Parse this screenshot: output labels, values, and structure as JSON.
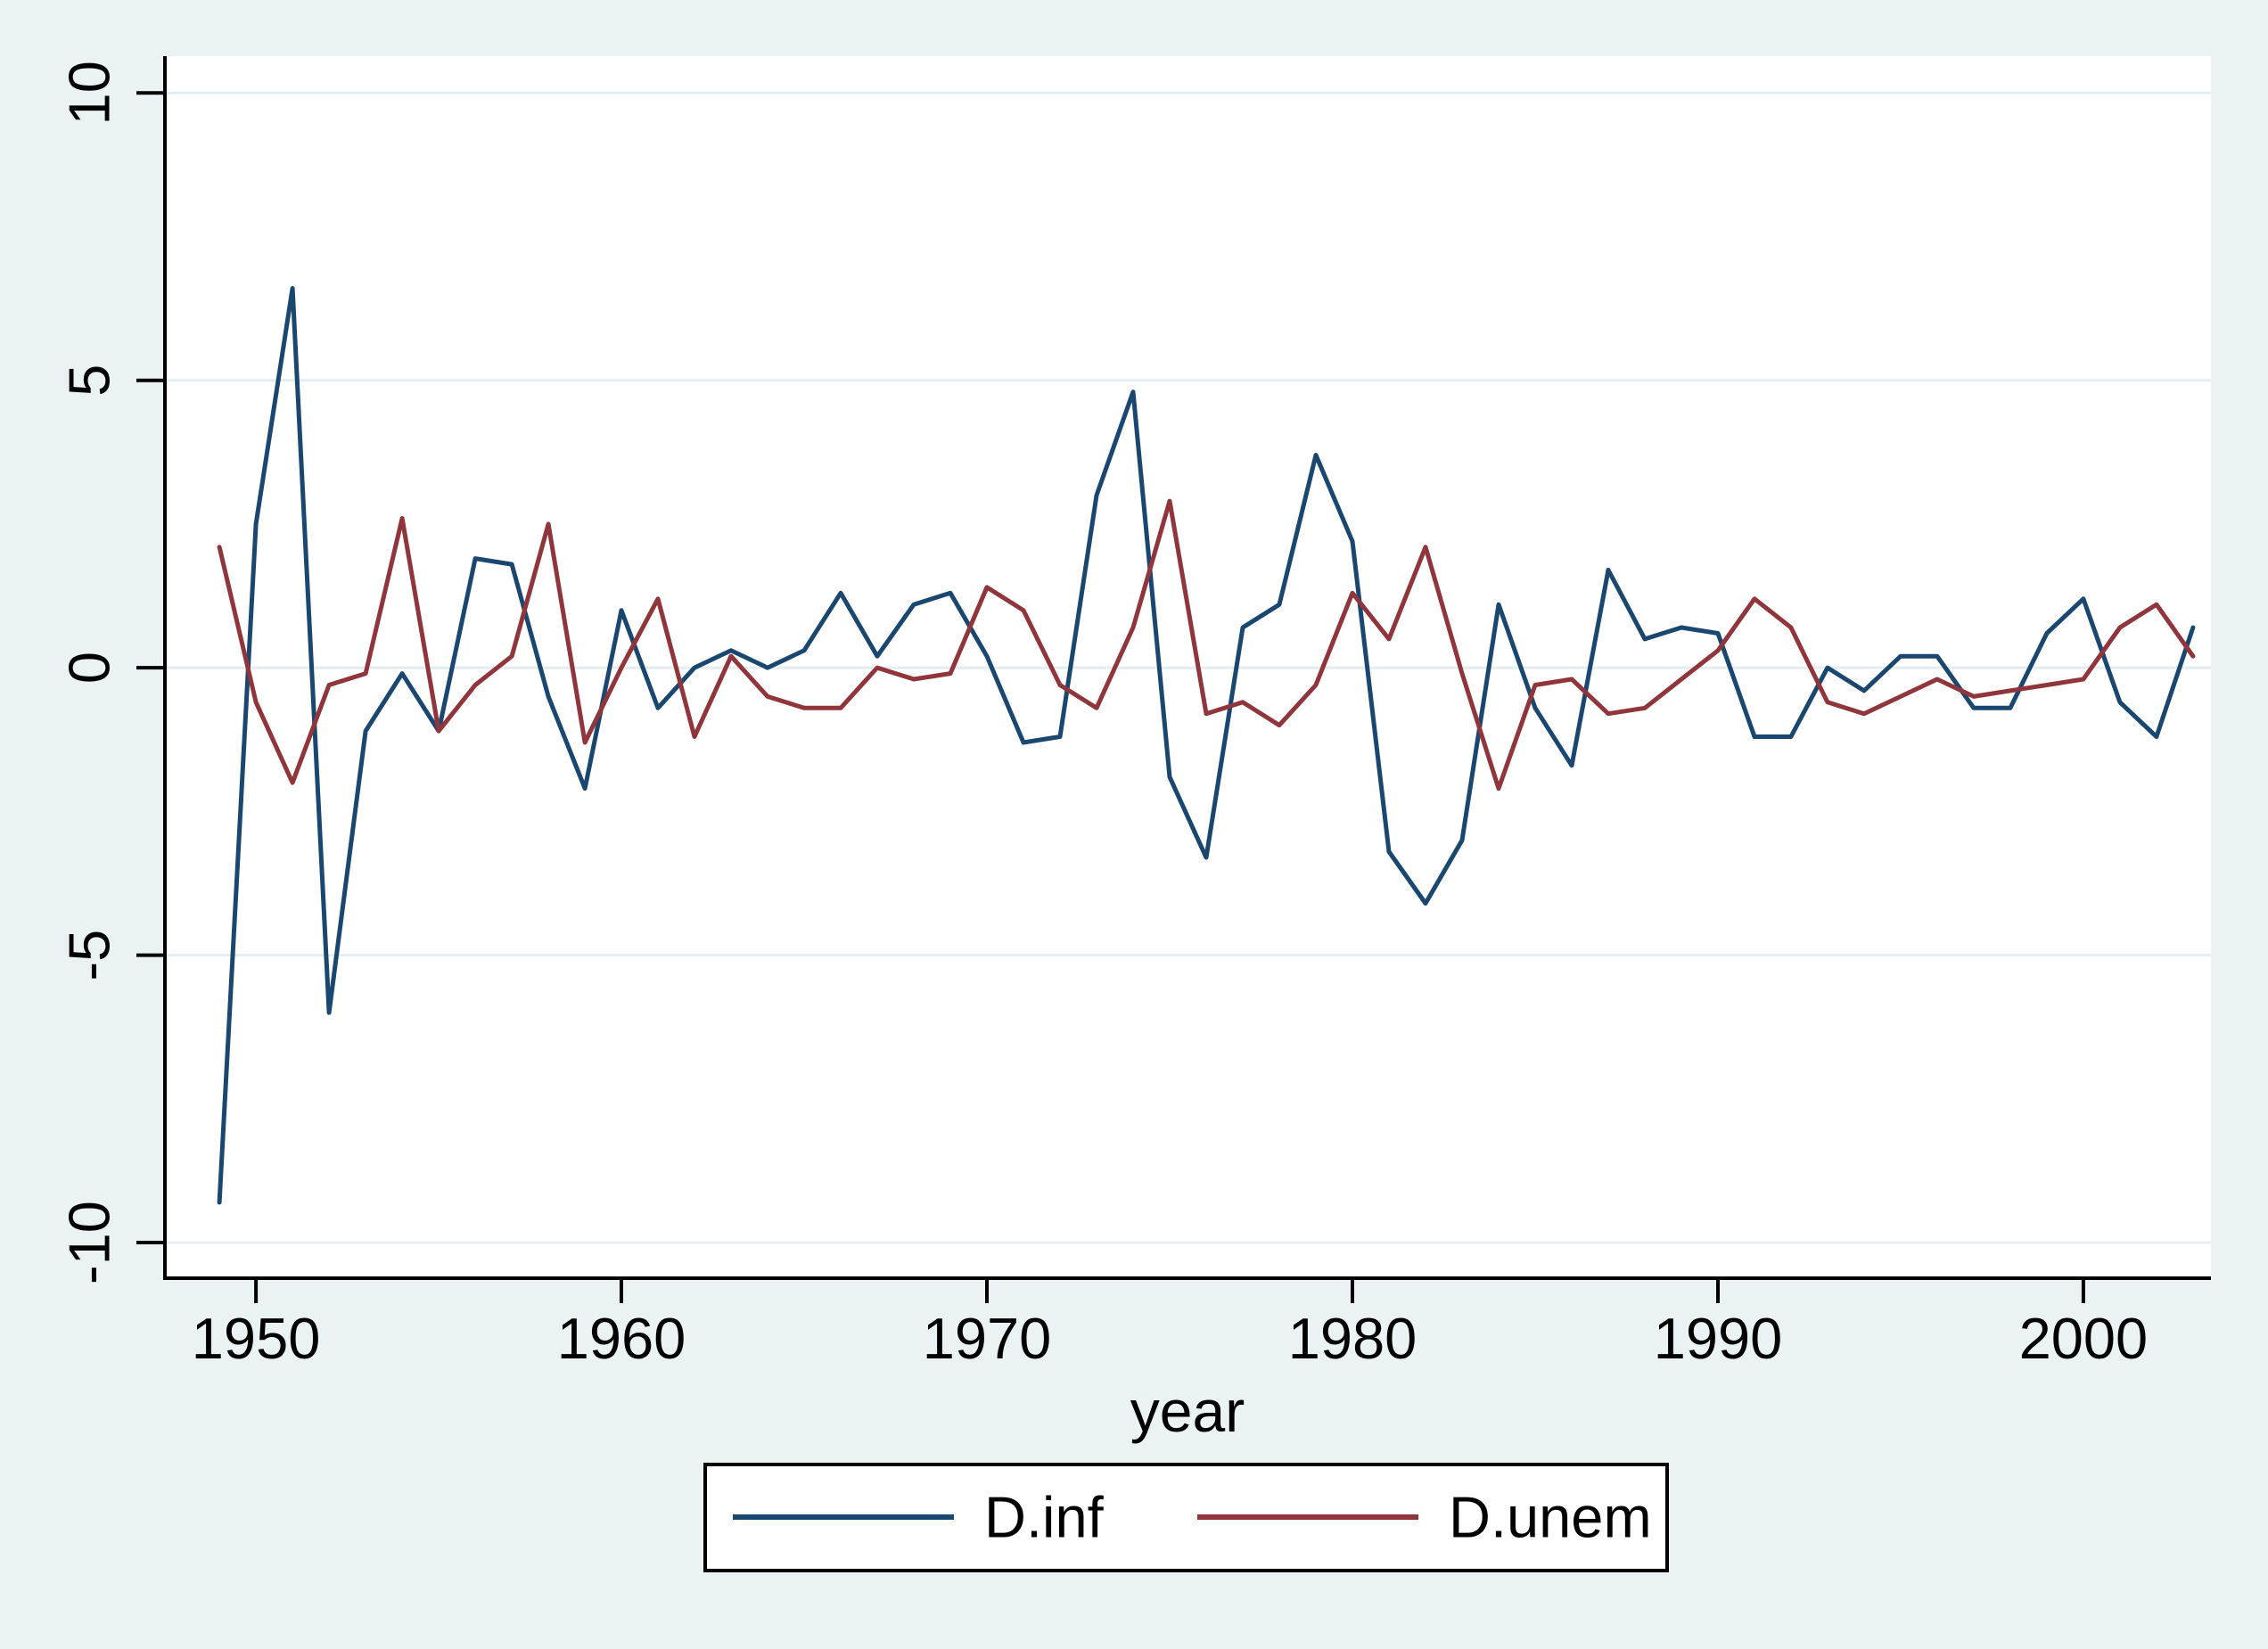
{
  "figure": {
    "background_color": "#eaf2f3",
    "plot_background_color": "#ffffff",
    "grid_color": "#e4eef1",
    "axis_color": "#000000",
    "text_color": "#000000",
    "legend_border_color": "#000000",
    "legend_background_color": "#ffffff"
  },
  "chart_data": {
    "type": "line",
    "title": "",
    "xlabel": "year",
    "ylabel": "",
    "grid": "horizontal",
    "legend_position": "bottom-center",
    "x_ticks": [
      1950,
      1960,
      1970,
      1980,
      1990,
      2000
    ],
    "y_ticks": [
      -10,
      -5,
      0,
      5,
      10
    ],
    "xlim": [
      1947.51,
      2003.49
    ],
    "ylim": [
      -10.62,
      10.64
    ],
    "x": [
      1949,
      1950,
      1951,
      1952,
      1953,
      1954,
      1955,
      1956,
      1957,
      1958,
      1959,
      1960,
      1961,
      1962,
      1963,
      1964,
      1965,
      1966,
      1967,
      1968,
      1969,
      1970,
      1971,
      1972,
      1973,
      1974,
      1975,
      1976,
      1977,
      1978,
      1979,
      1980,
      1981,
      1982,
      1983,
      1984,
      1985,
      1986,
      1987,
      1988,
      1989,
      1990,
      1991,
      1992,
      1993,
      1994,
      1995,
      1996,
      1997,
      1998,
      1999,
      2000,
      2001,
      2002,
      2003
    ],
    "series": [
      {
        "name": "D.inf",
        "color": "#1a476f",
        "values": [
          -9.3,
          2.5,
          6.6,
          -6.0,
          -1.1,
          -0.1,
          -1.1,
          1.9,
          1.8,
          -0.5,
          -2.1,
          1.0,
          -0.7,
          0.0,
          0.3,
          0.0,
          0.3,
          1.3,
          0.2,
          1.1,
          1.3,
          0.2,
          -1.3,
          -1.2,
          3.0,
          4.8,
          -1.9,
          -3.3,
          0.7,
          1.1,
          3.7,
          2.2,
          -3.2,
          -4.1,
          -3.0,
          1.1,
          -0.7,
          -1.7,
          1.7,
          0.5,
          0.7,
          0.6,
          -1.2,
          -1.2,
          0.0,
          -0.4,
          0.2,
          0.2,
          -0.7,
          -0.7,
          0.6,
          1.2,
          -0.6,
          -1.2,
          0.7
        ]
      },
      {
        "name": "D.unem",
        "color": "#90353b",
        "values": [
          2.1,
          -0.6,
          -2.0,
          -0.3,
          -0.1,
          2.6,
          -1.1,
          -0.3,
          0.2,
          2.5,
          -1.3,
          0.0,
          1.2,
          -1.2,
          0.2,
          -0.5,
          -0.7,
          -0.7,
          0.0,
          -0.2,
          -0.1,
          1.4,
          1.0,
          -0.3,
          -0.7,
          0.7,
          2.9,
          -0.8,
          -0.6,
          -1.0,
          -0.3,
          1.3,
          0.5,
          2.1,
          -0.1,
          -2.1,
          -0.3,
          -0.2,
          -0.8,
          -0.7,
          -0.2,
          0.3,
          1.2,
          0.7,
          -0.6,
          -0.8,
          -0.5,
          -0.2,
          -0.5,
          -0.4,
          -0.3,
          -0.2,
          0.7,
          1.1,
          0.2
        ]
      }
    ],
    "legend": {
      "entries": [
        {
          "label": "D.inf",
          "color": "#1a476f"
        },
        {
          "label": "D.unem",
          "color": "#90353b"
        }
      ]
    }
  }
}
